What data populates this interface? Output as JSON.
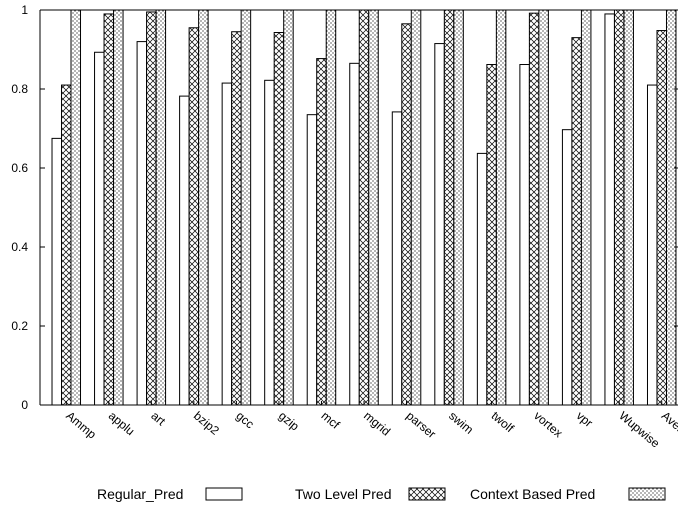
{
  "chart_data": {
    "type": "bar",
    "categories": [
      "Ammp",
      "applu",
      "art",
      "bzip2",
      "gcc",
      "gzip",
      "mcf",
      "mgrid",
      "parser",
      "swim",
      "twolf",
      "vortex",
      "vpr",
      "Wupwise",
      "Average"
    ],
    "series": [
      {
        "name": "Regular_Pred",
        "values": [
          0.675,
          0.893,
          0.92,
          0.782,
          0.815,
          0.822,
          0.735,
          0.865,
          0.742,
          0.915,
          0.637,
          0.862,
          0.697,
          0.99,
          0.81
        ],
        "pattern": "blank"
      },
      {
        "name": "Two Level Pred",
        "values": [
          0.81,
          0.99,
          0.995,
          0.955,
          0.945,
          0.943,
          0.877,
          1.0,
          0.965,
          1.0,
          0.862,
          0.992,
          0.93,
          1.0,
          0.948
        ],
        "pattern": "crosshatch"
      },
      {
        "name": "Context Based Pred",
        "values": [
          1.0,
          1.0,
          1.0,
          1.0,
          1.0,
          1.0,
          1.0,
          1.0,
          1.0,
          1.0,
          1.0,
          1.0,
          1.0,
          1.0,
          1.0
        ],
        "pattern": "dots"
      }
    ],
    "ylim": [
      0,
      1
    ],
    "yticks": [
      0,
      0.2,
      0.4,
      0.6,
      0.8,
      1
    ],
    "ytick_labels": [
      "0",
      "0.2",
      "0.4",
      "0.6",
      "0.8",
      "1"
    ],
    "legend_placement": "bottom",
    "grid": false,
    "colors": {
      "bar_stroke": "#000000",
      "background": "#ffffff"
    }
  }
}
